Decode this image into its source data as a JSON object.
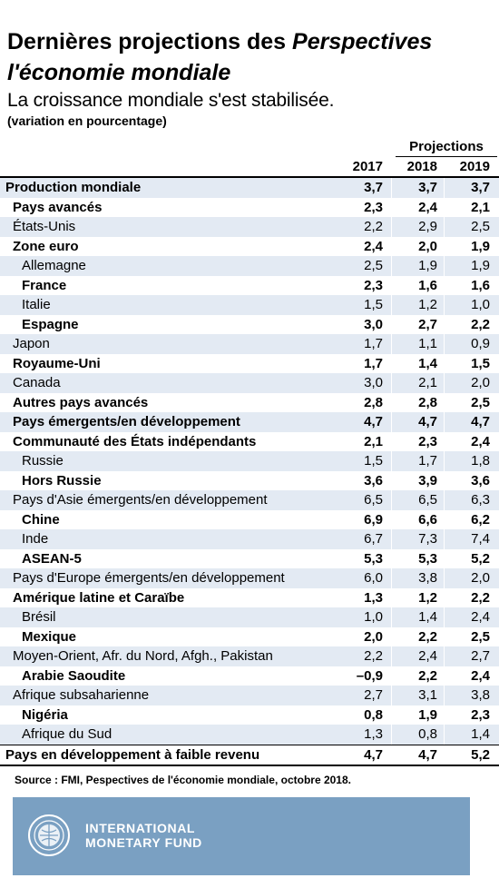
{
  "header": {
    "title_part1": "Dernières projections des ",
    "title_part2": "Perspectives",
    "title_line2": "l'économie mondiale",
    "subtitle": "La croissance mondiale s'est stabilisée.",
    "unit": "(variation en pourcentage)"
  },
  "table": {
    "projections_label": "Projections",
    "years": [
      "2017",
      "2018",
      "2019"
    ],
    "rows": [
      {
        "label": "Production mondiale",
        "indent": 0,
        "bold": true,
        "values": [
          "3,7",
          "3,7",
          "3,7"
        ]
      },
      {
        "label": "Pays avancés",
        "indent": 1,
        "bold": true,
        "values": [
          "2,3",
          "2,4",
          "2,1"
        ]
      },
      {
        "label": "États-Unis",
        "indent": 1,
        "bold": false,
        "values": [
          "2,2",
          "2,9",
          "2,5"
        ]
      },
      {
        "label": "Zone euro",
        "indent": 1,
        "bold": true,
        "values": [
          "2,4",
          "2,0",
          "1,9"
        ]
      },
      {
        "label": "Allemagne",
        "indent": 2,
        "bold": false,
        "values": [
          "2,5",
          "1,9",
          "1,9"
        ]
      },
      {
        "label": "France",
        "indent": 2,
        "bold": true,
        "values": [
          "2,3",
          "1,6",
          "1,6"
        ]
      },
      {
        "label": "Italie",
        "indent": 2,
        "bold": false,
        "values": [
          "1,5",
          "1,2",
          "1,0"
        ]
      },
      {
        "label": "Espagne",
        "indent": 2,
        "bold": true,
        "values": [
          "3,0",
          "2,7",
          "2,2"
        ]
      },
      {
        "label": "Japon",
        "indent": 1,
        "bold": false,
        "values": [
          "1,7",
          "1,1",
          "0,9"
        ]
      },
      {
        "label": "Royaume-Uni",
        "indent": 1,
        "bold": true,
        "values": [
          "1,7",
          "1,4",
          "1,5"
        ]
      },
      {
        "label": "Canada",
        "indent": 1,
        "bold": false,
        "values": [
          "3,0",
          "2,1",
          "2,0"
        ]
      },
      {
        "label": "Autres pays avancés",
        "indent": 1,
        "bold": true,
        "values": [
          "2,8",
          "2,8",
          "2,5"
        ]
      },
      {
        "label": "Pays émergents/en développement",
        "indent": 1,
        "bold": true,
        "values": [
          "4,7",
          "4,7",
          "4,7"
        ]
      },
      {
        "label": "Communauté des États indépendants",
        "indent": 1,
        "bold": true,
        "values": [
          "2,1",
          "2,3",
          "2,4"
        ]
      },
      {
        "label": "Russie",
        "indent": 2,
        "bold": false,
        "values": [
          "1,5",
          "1,7",
          "1,8"
        ]
      },
      {
        "label": "Hors Russie",
        "indent": 2,
        "bold": true,
        "values": [
          "3,6",
          "3,9",
          "3,6"
        ]
      },
      {
        "label": "Pays d'Asie émergents/en développement",
        "indent": 1,
        "bold": false,
        "values": [
          "6,5",
          "6,5",
          "6,3"
        ]
      },
      {
        "label": "Chine",
        "indent": 2,
        "bold": true,
        "values": [
          "6,9",
          "6,6",
          "6,2"
        ]
      },
      {
        "label": "Inde",
        "indent": 2,
        "bold": false,
        "values": [
          "6,7",
          "7,3",
          "7,4"
        ]
      },
      {
        "label": "ASEAN-5",
        "indent": 2,
        "bold": true,
        "values": [
          "5,3",
          "5,3",
          "5,2"
        ]
      },
      {
        "label": "Pays d'Europe émergents/en développement",
        "indent": 1,
        "bold": false,
        "values": [
          "6,0",
          "3,8",
          "2,0"
        ]
      },
      {
        "label": "Amérique latine et Caraïbe",
        "indent": 1,
        "bold": true,
        "values": [
          "1,3",
          "1,2",
          "2,2"
        ]
      },
      {
        "label": "Brésil",
        "indent": 2,
        "bold": false,
        "values": [
          "1,0",
          "1,4",
          "2,4"
        ]
      },
      {
        "label": "Mexique",
        "indent": 2,
        "bold": true,
        "values": [
          "2,0",
          "2,2",
          "2,5"
        ]
      },
      {
        "label": "Moyen-Orient, Afr. du Nord, Afgh., Pakistan",
        "indent": 1,
        "bold": false,
        "values": [
          "2,2",
          "2,4",
          "2,7"
        ]
      },
      {
        "label": "Arabie Saoudite",
        "indent": 2,
        "bold": true,
        "values": [
          "–0,9",
          "2,2",
          "2,4"
        ]
      },
      {
        "label": "Afrique subsaharienne",
        "indent": 1,
        "bold": false,
        "values": [
          "2,7",
          "3,1",
          "3,8"
        ]
      },
      {
        "label": "Nigéria",
        "indent": 2,
        "bold": true,
        "values": [
          "0,8",
          "1,9",
          "2,3"
        ]
      },
      {
        "label": "Afrique du Sud",
        "indent": 2,
        "bold": false,
        "values": [
          "1,3",
          "0,8",
          "1,4"
        ]
      },
      {
        "label": "Pays en développement à faible revenu",
        "indent": 0,
        "bold": true,
        "values": [
          "4,7",
          "4,7",
          "5,2"
        ]
      }
    ]
  },
  "source": "Source : FMI, Pespectives de l'économie mondiale, octobre 2018.",
  "footer": {
    "logo_line1": "INTERNATIONAL",
    "logo_line2": "MONETARY FUND",
    "seal_icon": "imf-seal-icon",
    "banner_color": "#7aa0c2",
    "row_shade_color": "#e3eaf3"
  }
}
